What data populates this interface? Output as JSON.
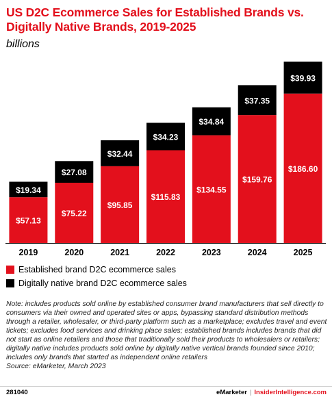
{
  "chart_data": {
    "type": "bar",
    "stacked": true,
    "title": "US D2C Ecommerce Sales for Established Brands vs. Digitally Native Brands, 2019-2025",
    "subtitle": "billions",
    "categories": [
      "2019",
      "2020",
      "2021",
      "2022",
      "2023",
      "2024",
      "2025"
    ],
    "series": [
      {
        "name": "Established brand D2C ecommerce sales",
        "color": "#e3101c",
        "values": [
          57.13,
          75.22,
          95.85,
          115.83,
          134.55,
          159.76,
          186.6
        ],
        "labels": [
          "$57.13",
          "$75.22",
          "$95.85",
          "$115.83",
          "$134.55",
          "$159.76",
          "$186.60"
        ]
      },
      {
        "name": "Digitally native brand D2C ecommerce sales",
        "color": "#000000",
        "values": [
          19.34,
          27.08,
          32.44,
          34.23,
          34.84,
          37.35,
          39.93
        ],
        "labels": [
          "$19.34",
          "$27.08",
          "$32.44",
          "$34.23",
          "$34.84",
          "$37.35",
          "$39.93"
        ]
      }
    ],
    "ylim": [
      0,
      226.53
    ],
    "grid": false,
    "legend": "bottom-left"
  },
  "note": "Note: includes products sold online by established consumer brand manufacturers that sell directly to consumers via their owned and operated sites or apps, bypassing standard distribution methods through a retailer, wholesaler, or third-party platform such as a marketplace; excludes travel and event tickets; excludes food services and drinking place sales; established brands includes brands that did not start as online retailers and those that traditionally sold their products to wholesalers or retailers; digitally native includes products sold online by digitally native vertical brands founded since 2010; includes only brands that started as independent online retailers",
  "source": "Source: eMarketer, March 2023",
  "footer": {
    "id": "281040",
    "brand1": "eMarketer",
    "separator": "|",
    "brand2": "InsiderIntelligence.com"
  }
}
